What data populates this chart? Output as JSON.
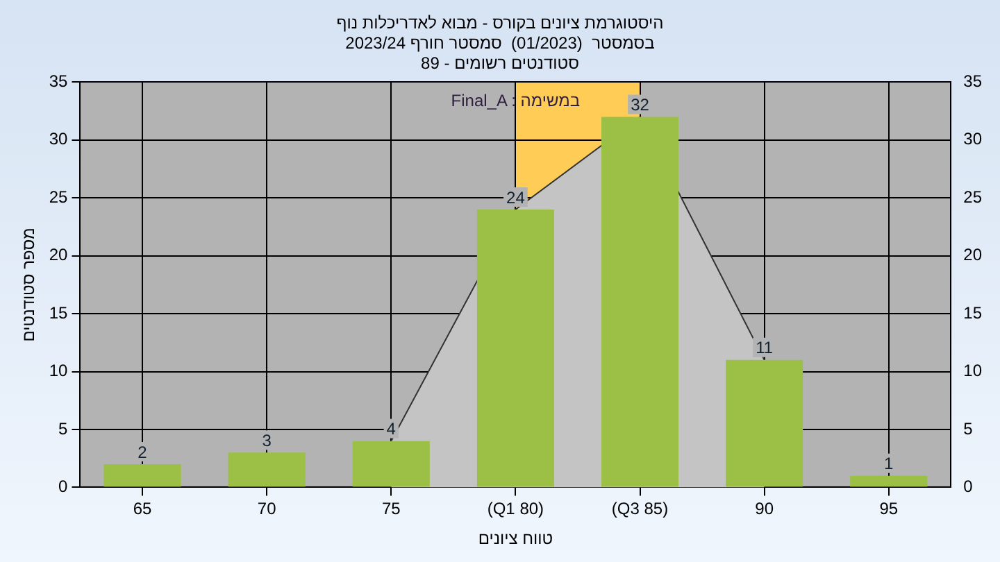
{
  "chart_data": {
    "type": "bar",
    "title": "היסטוגרמת ציונים בקורס - מבוא לאדריכלות נוף",
    "subtitle": "בסמסטר  (01/2023)  סמסטר חורף 2023/24\nסטודנטים רשומים - 89",
    "xlabel": "טווח ציונים",
    "ylabel": "מספר סטודנטים",
    "categories": [
      "65",
      "70",
      "75",
      "(Q1 80)",
      "(Q3 85)",
      "90",
      "95"
    ],
    "series": [
      {
        "color": "#9cbf45",
        "values": [
          2,
          3,
          4,
          24,
          32,
          11,
          1
        ],
        "value_labels": [
          "2",
          "3",
          "4",
          "24",
          "32",
          "11",
          "1"
        ]
      },
      {
        "type": "area",
        "color": "#c4c4c4",
        "values": [
          null,
          null,
          4,
          24,
          32,
          11,
          null
        ]
      }
    ],
    "ylim": [
      0,
      35
    ],
    "yticks": [
      0,
      5,
      10,
      15,
      20,
      25,
      30,
      35
    ],
    "y2lim": [
      0,
      35
    ],
    "y2ticks": [
      0,
      5,
      10,
      15,
      20,
      25,
      30,
      35
    ],
    "bands": [
      {
        "axis": "x",
        "from": "(Q1 80)",
        "to": "(Q3 85)",
        "color": "#ffcc55"
      }
    ],
    "annotations": [
      "Final_A : במשימה"
    ],
    "grid": true,
    "legend": false
  }
}
